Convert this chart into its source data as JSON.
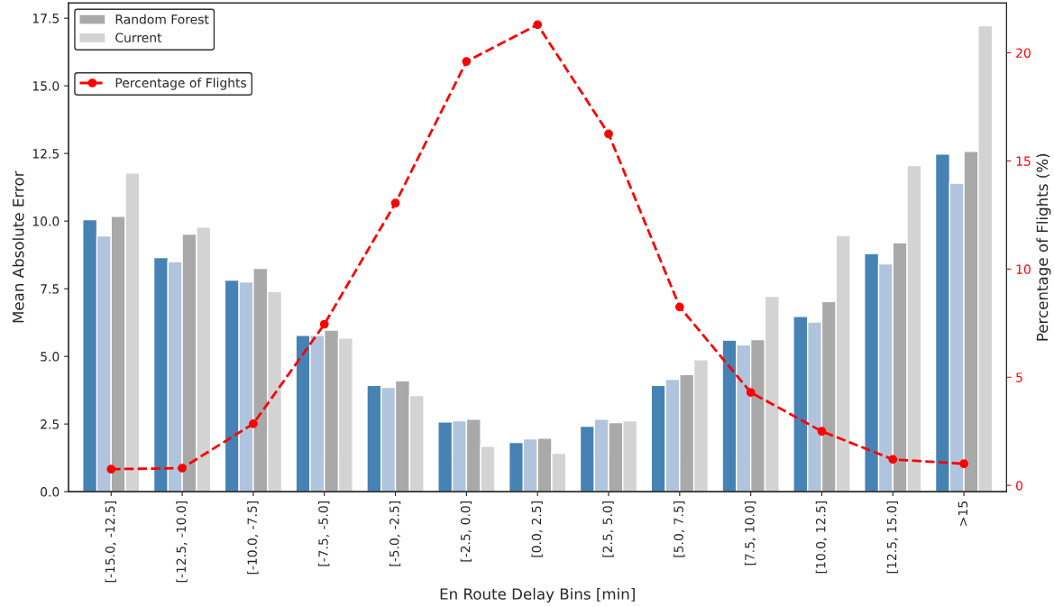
{
  "chart_data": {
    "type": "bar",
    "xlabel": "En Route Delay Bins [min]",
    "ylabel": "Mean Absolute Error",
    "y2label": "Percentage of Flights (%)",
    "categories": [
      "[-15.0, -12.5]",
      "[-12.5, -10.0]",
      "[-10.0, -7.5]",
      "[-7.5, -5.0]",
      "[-5.0, -2.5]",
      "[-2.5, 0.0]",
      "[0.0, 2.5]",
      "[2.5, 5.0]",
      "[5.0, 7.5]",
      "[7.5, 10.0]",
      "[10.0, 12.5]",
      "[12.5, 15.0]",
      ">15"
    ],
    "series": [
      {
        "color": "#4682b4",
        "values": [
          10.05,
          8.65,
          7.82,
          5.78,
          3.93,
          2.58,
          1.82,
          2.42,
          3.93,
          5.6,
          6.48,
          8.8,
          12.48
        ]
      },
      {
        "color": "#b0c4de",
        "values": [
          9.45,
          8.5,
          7.75,
          5.78,
          3.85,
          2.62,
          1.95,
          2.68,
          4.15,
          5.43,
          6.27,
          8.42,
          11.4
        ]
      },
      {
        "name": "Random Forest",
        "color": "#a9a9a9",
        "values": [
          10.18,
          9.52,
          8.25,
          5.97,
          4.1,
          2.68,
          1.98,
          2.55,
          4.33,
          5.62,
          7.03,
          9.2,
          12.58
        ]
      },
      {
        "name": "Current",
        "color": "#d3d3d3",
        "values": [
          11.78,
          9.78,
          7.4,
          5.68,
          3.55,
          1.68,
          1.42,
          2.62,
          4.88,
          7.22,
          9.47,
          12.05,
          17.22
        ]
      },
      {
        "name": "Percentage of Flights",
        "type": "line",
        "axis": "y2",
        "color": "#ff0000",
        "marker": "circle",
        "line_style": "dashed",
        "values": [
          0.75,
          0.8,
          2.85,
          7.45,
          13.05,
          19.6,
          21.3,
          16.25,
          8.25,
          4.3,
          2.5,
          1.2,
          1.0
        ]
      }
    ],
    "ylim": [
      0,
      18.06
    ],
    "yticks": [
      {
        "value": 0,
        "label": "0.0"
      },
      2.5,
      {
        "value": 5,
        "label": "5.0"
      },
      7.5,
      {
        "value": 10,
        "label": "10.0"
      },
      12.5,
      {
        "value": 15,
        "label": "15.0"
      },
      17.5
    ],
    "y2lim": [
      -0.29,
      22.3
    ],
    "y2ticks": [
      0,
      5,
      10,
      15,
      20
    ],
    "legend": "top left",
    "grid": false
  }
}
